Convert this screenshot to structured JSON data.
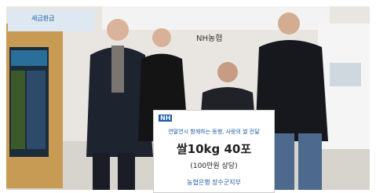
{
  "scene": {
    "background_sign": "NH농협",
    "left_banner": "세금환급"
  },
  "sign": {
    "logo": "NH",
    "headline": "연말연시 함께하는 동행, 사랑의 쌀 전달",
    "main": "쌀10kg 40포",
    "sub": "(100만원 상당)",
    "footer": "농협은행 장수군지부"
  }
}
